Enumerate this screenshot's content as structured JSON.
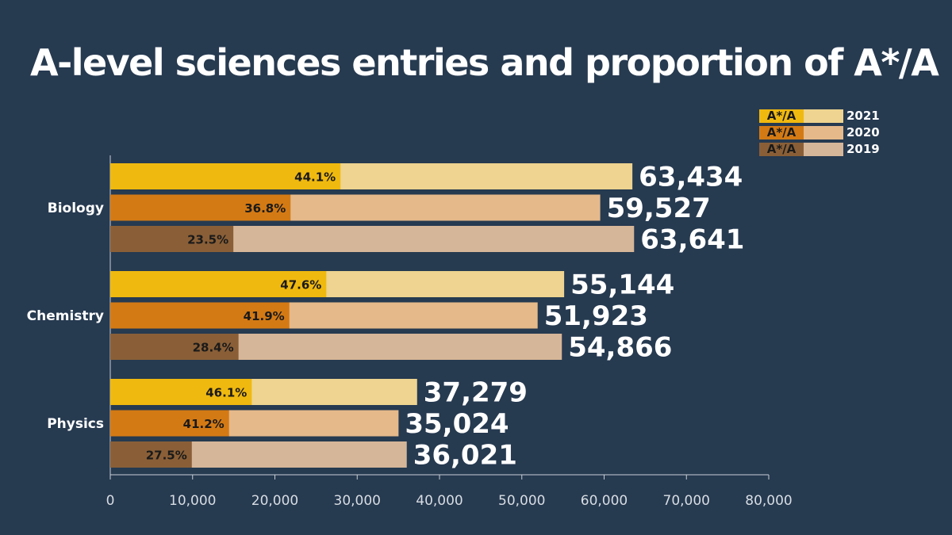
{
  "title": "A-level sciences entries and proportion of A*/A",
  "legend": [
    {
      "label": "A*/A",
      "year": "2021",
      "dark": "#f0b90f",
      "light": "#eed490"
    },
    {
      "label": "A*/A",
      "year": "2020",
      "dark": "#d47a14",
      "light": "#e5b98a"
    },
    {
      "label": "A*/A",
      "year": "2019",
      "dark": "#8a5f37",
      "light": "#d6b698"
    }
  ],
  "chart_data": {
    "type": "bar",
    "orientation": "horizontal",
    "title": "A-level sciences entries and proportion of A*/A",
    "categories": [
      "Biology",
      "Chemistry",
      "Physics"
    ],
    "series": [
      {
        "name": "2021",
        "values": [
          63434,
          55144,
          37279
        ],
        "share_a_star_a": [
          44.1,
          47.6,
          46.1
        ],
        "labels": [
          "63,434",
          "55,144",
          "37,279"
        ],
        "pct_labels": [
          "44.1%",
          "47.6%",
          "46.1%"
        ],
        "dark_color": "#f0b90f",
        "light_color": "#eed490"
      },
      {
        "name": "2020",
        "values": [
          59527,
          51923,
          35024
        ],
        "share_a_star_a": [
          36.8,
          41.9,
          41.2
        ],
        "labels": [
          "59,527",
          "51,923",
          "35,024"
        ],
        "pct_labels": [
          "36.8%",
          "41.9%",
          "41.2%"
        ],
        "dark_color": "#d47a14",
        "light_color": "#e5b98a"
      },
      {
        "name": "2019",
        "values": [
          63641,
          54866,
          36021
        ],
        "share_a_star_a": [
          23.5,
          28.4,
          27.5
        ],
        "labels": [
          "63,641",
          "54,866",
          "36,021"
        ],
        "pct_labels": [
          "23.5%",
          "28.4%",
          "27.5%"
        ],
        "dark_color": "#8a5f37",
        "light_color": "#d6b698"
      }
    ],
    "xlim": [
      0,
      80000
    ],
    "x_ticks": [
      0,
      10000,
      20000,
      30000,
      40000,
      50000,
      60000,
      70000,
      80000
    ],
    "x_tick_labels": [
      "0",
      "10,000",
      "20,000",
      "30,000",
      "40,000",
      "50,000",
      "60,000",
      "70,000",
      "80,000"
    ],
    "legend_position": "top-right",
    "grid": false
  }
}
